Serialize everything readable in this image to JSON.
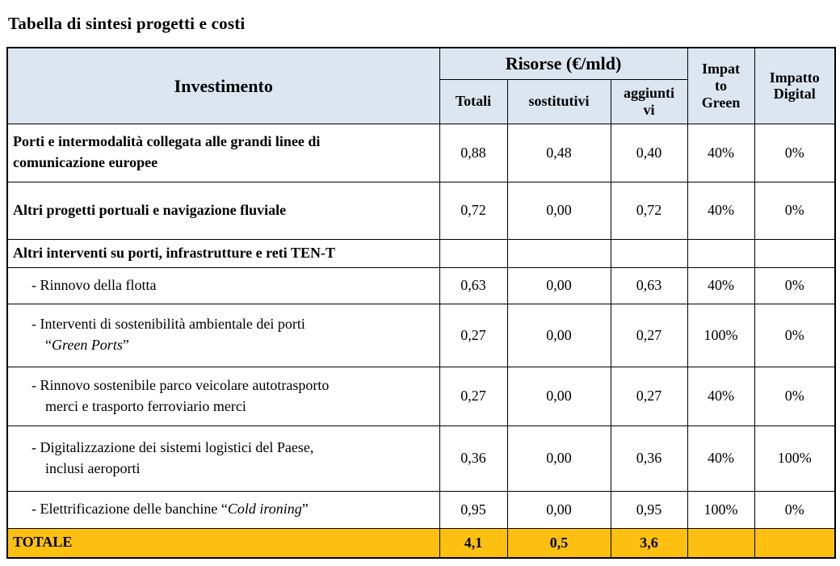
{
  "page_title": "Tabella di sintesi progetti e costi",
  "table": {
    "header": {
      "investimento": "Investimento",
      "risorse_group": "Risorse (€/mld)",
      "risorse_cols": [
        "Totali",
        "sostitutivi",
        "aggiunti\nvi"
      ],
      "impatto_green": "Impat\nto\nGreen",
      "impatto_digital": "Impatto\nDigital"
    },
    "rows": [
      {
        "style": "bold",
        "label_parts": [
          {
            "t": "Porti e intermodalità collegata alle grandi linee di\ncomunicazione europee",
            "i": false
          }
        ],
        "values": [
          "0,88",
          "0,48",
          "0,40",
          "40%",
          "0%"
        ]
      },
      {
        "style": "bold",
        "label_parts": [
          {
            "t": "Altri progetti portuali e navigazione fluviale",
            "i": false
          }
        ],
        "values": [
          "0,72",
          "0,00",
          "0,72",
          "40%",
          "0%"
        ]
      },
      {
        "style": "bold",
        "label_parts": [
          {
            "t": "Altri interventi su porti, infrastrutture e reti TEN-T",
            "i": false
          }
        ],
        "values": [
          "",
          "",
          "",
          "",
          ""
        ]
      },
      {
        "style": "sub",
        "label_parts": [
          {
            "t": "- Rinnovo della flotta",
            "i": false
          }
        ],
        "values": [
          "0,63",
          "0,00",
          "0,63",
          "40%",
          "0%"
        ]
      },
      {
        "style": "sub",
        "label_parts": [
          {
            "t": "- Interventi di sostenibilità ambientale dei porti\n“",
            "i": false
          },
          {
            "t": "Green Ports",
            "i": true
          },
          {
            "t": "”",
            "i": false
          }
        ],
        "values": [
          "0,27",
          "0,00",
          "0,27",
          "100%",
          "0%"
        ]
      },
      {
        "style": "sub",
        "label_parts": [
          {
            "t": "- Rinnovo sostenibile parco veicolare autotrasporto\nmerci e trasporto ferroviario merci",
            "i": false
          }
        ],
        "values": [
          "0,27",
          "0,00",
          "0,27",
          "40%",
          "0%"
        ]
      },
      {
        "style": "sub",
        "label_parts": [
          {
            "t": "- Digitalizzazione dei sistemi logistici del Paese,\ninclusi aeroporti",
            "i": false
          }
        ],
        "values": [
          "0,36",
          "0,00",
          "0,36",
          "40%",
          "100%"
        ]
      },
      {
        "style": "sub",
        "label_parts": [
          {
            "t": "- Elettrificazione delle banchine “",
            "i": false
          },
          {
            "t": "Cold ironing",
            "i": true
          },
          {
            "t": "”",
            "i": false
          }
        ],
        "values": [
          "0,95",
          "0,00",
          "0,95",
          "100%",
          "0%"
        ]
      }
    ],
    "total_row": {
      "label": "TOTALE",
      "values": [
        "4,1",
        "0,5",
        "3,6",
        "",
        ""
      ]
    }
  },
  "colors": {
    "header_bg": "#dce6f1",
    "total_bg": "#fdc010",
    "border": "#000000",
    "text": "#000000"
  }
}
